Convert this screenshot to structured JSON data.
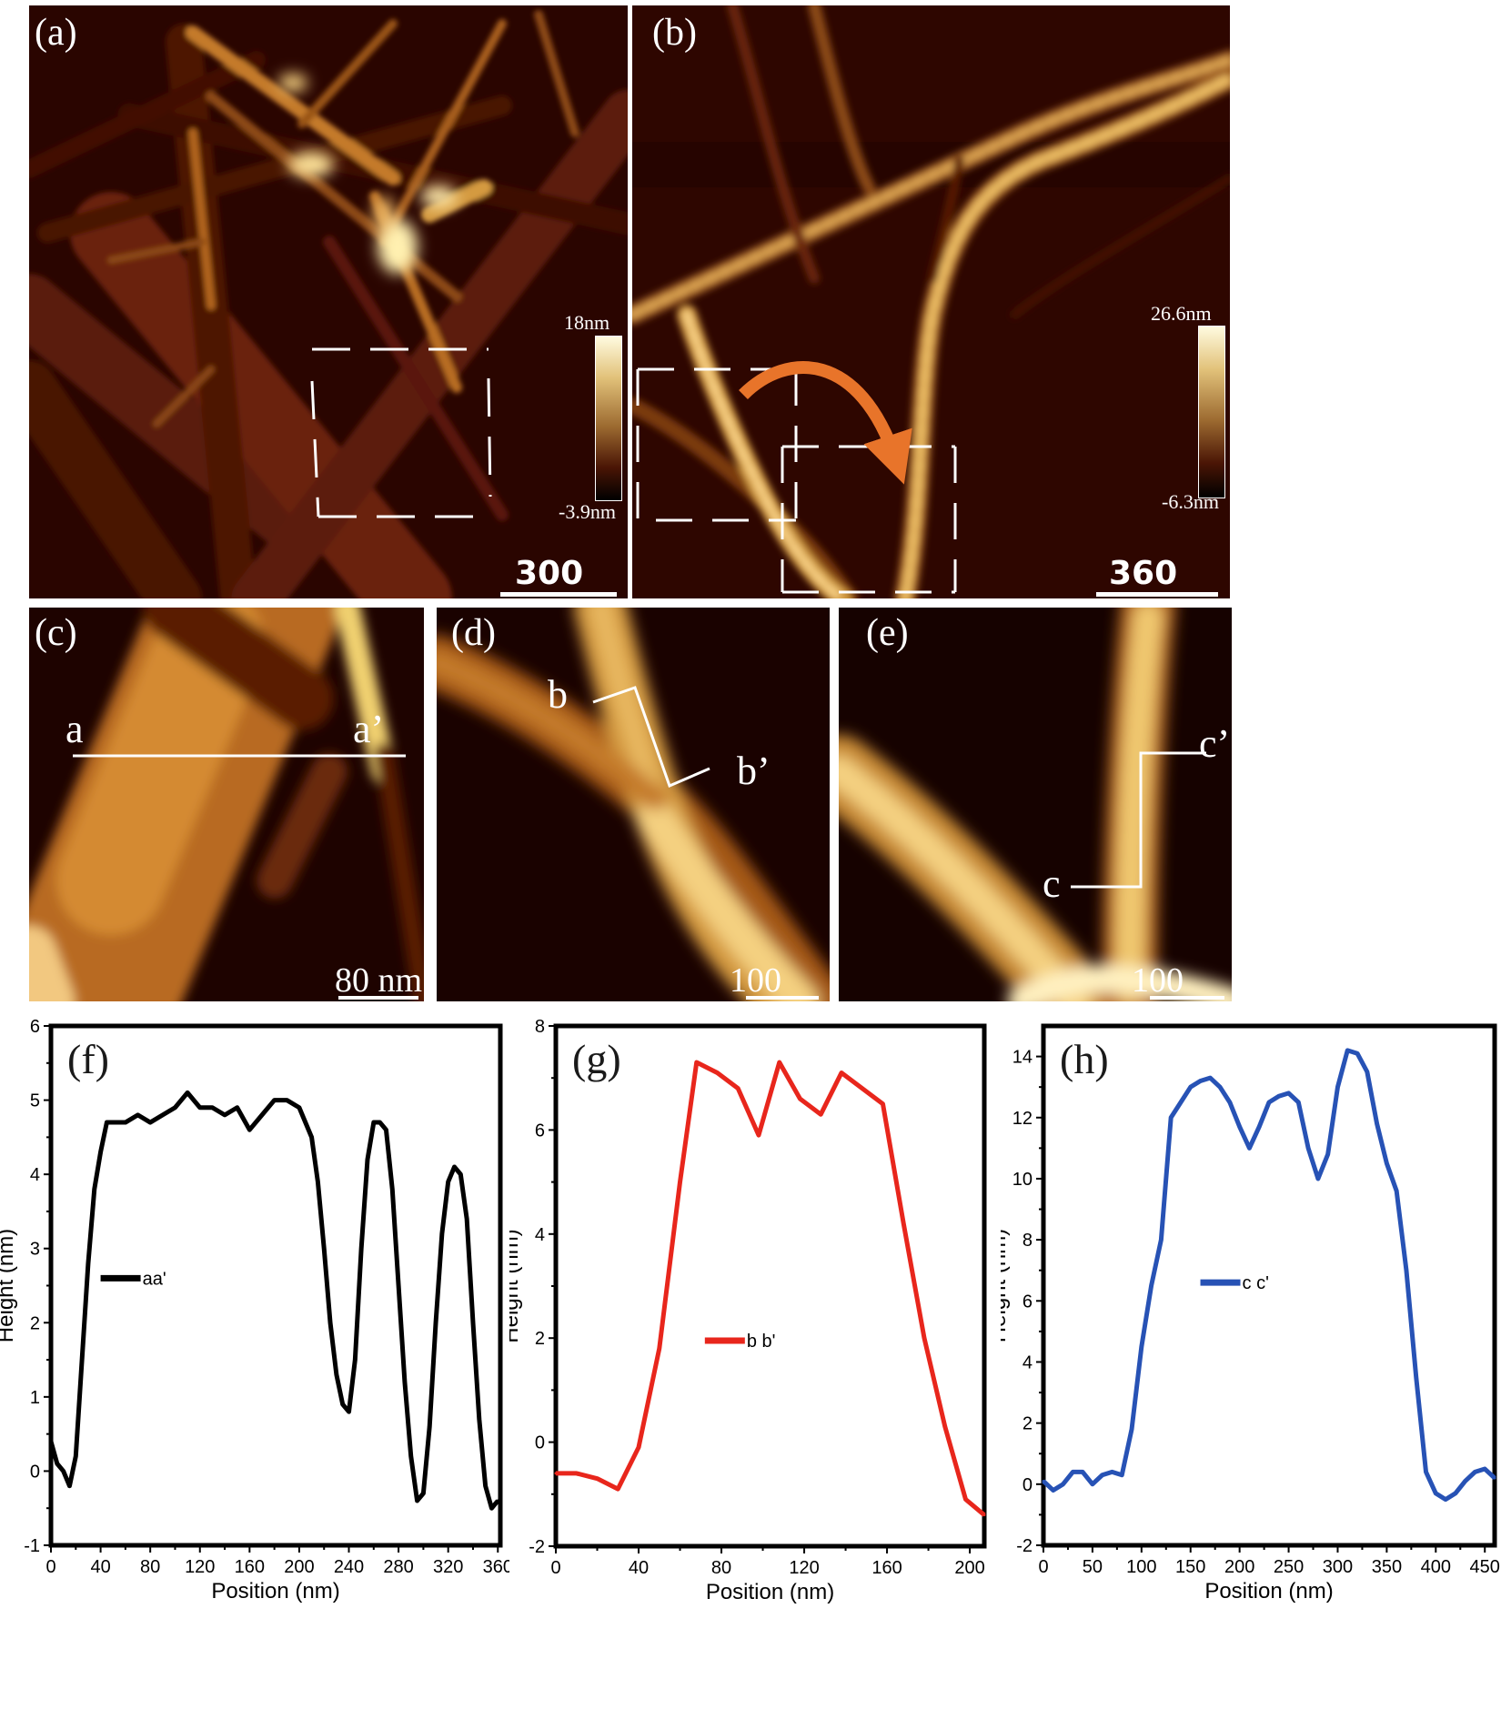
{
  "panels": {
    "a": {
      "label": "(a)",
      "scale": "300 nm",
      "cbar_max": "18nm",
      "cbar_min": "-3.9nm"
    },
    "b": {
      "label": "(b)",
      "scale": "360 nm",
      "cbar_max": "26.6nm",
      "cbar_min": "-6.3nm"
    },
    "c": {
      "label": "(c)",
      "scale": "80 nm",
      "line_start": "a",
      "line_end": "a’"
    },
    "d": {
      "label": "(d)",
      "scale": "100 nm",
      "line_start": "b",
      "line_end": "b’"
    },
    "e": {
      "label": "(e)",
      "scale": "100 nm",
      "line_start": "c",
      "line_end": "c’"
    }
  },
  "colors": {
    "aa": "#000000",
    "bb": "#e8261c",
    "cc": "#2752b5"
  },
  "chart_data": [
    {
      "type": "line",
      "panel_label": "(f)",
      "xlabel": "Position (nm)",
      "ylabel": "Height (nm)",
      "xlim": [
        0,
        362
      ],
      "ylim": [
        -1,
        6
      ],
      "xticks": [
        0,
        40,
        80,
        120,
        160,
        200,
        240,
        280,
        320,
        360
      ],
      "yticks": [
        -1,
        0,
        1,
        2,
        3,
        4,
        5,
        6
      ],
      "legend_position": "center-left",
      "series": [
        {
          "name": "aa'",
          "x": [
            0,
            5,
            10,
            15,
            20,
            25,
            30,
            35,
            40,
            45,
            50,
            60,
            70,
            80,
            90,
            100,
            110,
            120,
            130,
            140,
            150,
            160,
            170,
            180,
            190,
            200,
            210,
            215,
            220,
            225,
            230,
            235,
            240,
            245,
            250,
            255,
            260,
            265,
            270,
            275,
            280,
            285,
            290,
            295,
            300,
            305,
            310,
            315,
            320,
            325,
            330,
            335,
            340,
            345,
            350,
            355,
            360
          ],
          "y": [
            0.4,
            0.1,
            0.0,
            -0.2,
            0.2,
            1.5,
            2.8,
            3.8,
            4.3,
            4.7,
            4.7,
            4.7,
            4.8,
            4.7,
            4.8,
            4.9,
            5.1,
            4.9,
            4.9,
            4.8,
            4.9,
            4.6,
            4.8,
            5.0,
            5.0,
            4.9,
            4.5,
            3.9,
            3.0,
            2.0,
            1.3,
            0.9,
            0.8,
            1.5,
            3.0,
            4.2,
            4.7,
            4.7,
            4.6,
            3.8,
            2.5,
            1.2,
            0.2,
            -0.4,
            -0.3,
            0.6,
            2.0,
            3.2,
            3.9,
            4.1,
            4.0,
            3.4,
            2.0,
            0.7,
            -0.2,
            -0.5,
            -0.4
          ]
        }
      ]
    },
    {
      "type": "line",
      "panel_label": "(g)",
      "xlabel": "Position (nm)",
      "ylabel": "Height (nm)",
      "xlim": [
        0,
        207
      ],
      "ylim": [
        -2,
        8
      ],
      "xticks": [
        0,
        40,
        80,
        120,
        160,
        200
      ],
      "yticks": [
        -2,
        0,
        2,
        4,
        6,
        8
      ],
      "legend_position": "center",
      "series": [
        {
          "name": "b b'",
          "x": [
            0,
            10,
            20,
            30,
            40,
            50,
            60,
            68,
            78,
            88,
            98,
            108,
            118,
            128,
            138,
            148,
            158,
            168,
            178,
            188,
            198,
            207
          ],
          "y": [
            -0.6,
            -0.6,
            -0.7,
            -0.9,
            -0.1,
            1.8,
            5.0,
            7.3,
            7.1,
            6.8,
            5.9,
            7.3,
            6.6,
            6.3,
            7.1,
            6.8,
            6.5,
            4.2,
            2.0,
            0.3,
            -1.1,
            -1.4
          ]
        }
      ]
    },
    {
      "type": "line",
      "panel_label": "(h)",
      "xlabel": "Position (nm)",
      "ylabel": "Height (nm)",
      "xlim": [
        0,
        460
      ],
      "ylim": [
        -2,
        15
      ],
      "xticks": [
        0,
        50,
        100,
        150,
        200,
        250,
        300,
        350,
        400,
        450
      ],
      "yticks": [
        -2,
        0,
        2,
        4,
        6,
        8,
        10,
        12,
        14
      ],
      "legend_position": "center",
      "series": [
        {
          "name": "c c'",
          "x": [
            0,
            10,
            20,
            30,
            40,
            50,
            60,
            70,
            80,
            90,
            100,
            110,
            120,
            130,
            140,
            150,
            160,
            170,
            180,
            190,
            200,
            210,
            220,
            230,
            240,
            250,
            260,
            270,
            280,
            290,
            300,
            310,
            320,
            330,
            340,
            350,
            360,
            370,
            380,
            390,
            400,
            410,
            420,
            430,
            440,
            450,
            460
          ],
          "y": [
            0.1,
            -0.2,
            0.0,
            0.4,
            0.4,
            0.0,
            0.3,
            0.4,
            0.3,
            1.8,
            4.5,
            6.5,
            8.0,
            12.0,
            12.5,
            13.0,
            13.2,
            13.3,
            13.0,
            12.5,
            11.7,
            11.0,
            11.7,
            12.5,
            12.7,
            12.8,
            12.5,
            11.0,
            10.0,
            10.8,
            13.0,
            14.2,
            14.1,
            13.5,
            11.8,
            10.5,
            9.6,
            7.0,
            3.5,
            0.4,
            -0.3,
            -0.5,
            -0.3,
            0.1,
            0.4,
            0.5,
            0.2
          ]
        }
      ]
    }
  ]
}
